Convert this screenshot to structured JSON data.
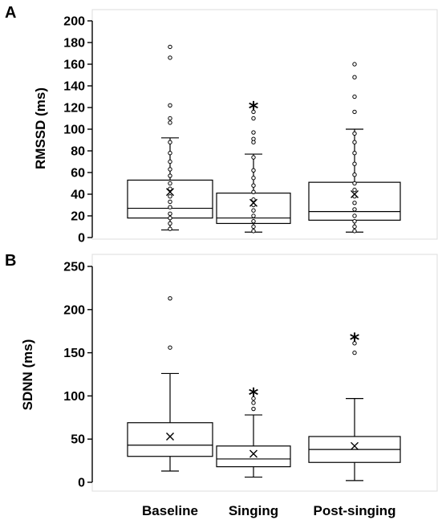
{
  "chart_data": [
    {
      "panel": "A",
      "type": "box",
      "ylabel": "RMSSD (ms)",
      "ylim": [
        0,
        200
      ],
      "yticks": [
        0,
        20,
        40,
        60,
        80,
        100,
        120,
        140,
        160,
        180,
        200
      ],
      "categories": [
        "Baseline",
        "Singing",
        "Post-singing"
      ],
      "grid": false,
      "boxes": [
        {
          "category": "Baseline",
          "whisker_low": 7,
          "q1": 18,
          "median": 27,
          "q3": 53,
          "whisker_high": 92,
          "mean": 42,
          "points": [
            166,
            176,
            122,
            110,
            106,
            88,
            78,
            70,
            63,
            57,
            50,
            45,
            38,
            33,
            28,
            22,
            18,
            13,
            8
          ],
          "significant": false
        },
        {
          "category": "Singing",
          "whisker_low": 5,
          "q1": 13,
          "median": 18,
          "q3": 41,
          "whisker_high": 77,
          "mean": 32,
          "points": [
            116,
            110,
            97,
            91,
            88,
            74,
            62,
            55,
            48,
            42,
            35,
            30,
            25,
            20,
            15,
            10,
            6
          ],
          "significant": true
        },
        {
          "category": "Post-singing",
          "whisker_low": 5,
          "q1": 16,
          "median": 24,
          "q3": 51,
          "whisker_high": 100,
          "mean": 40,
          "points": [
            160,
            148,
            130,
            116,
            96,
            88,
            78,
            68,
            58,
            50,
            44,
            38,
            32,
            26,
            20,
            15,
            10,
            6
          ],
          "significant": false
        }
      ]
    },
    {
      "panel": "B",
      "type": "box",
      "ylabel": "SDNN (ms)",
      "ylim": [
        0,
        250
      ],
      "yticks": [
        0,
        50,
        100,
        150,
        200,
        250
      ],
      "categories": [
        "Baseline",
        "Singing",
        "Post-singing"
      ],
      "grid": false,
      "boxes": [
        {
          "category": "Baseline",
          "whisker_low": 13,
          "q1": 30,
          "median": 43,
          "q3": 69,
          "whisker_high": 126,
          "mean": 53,
          "points": [
            213,
            156
          ],
          "significant": false
        },
        {
          "category": "Singing",
          "whisker_low": 6,
          "q1": 18,
          "median": 27,
          "q3": 42,
          "whisker_high": 78,
          "mean": 33,
          "points": [
            97,
            92,
            85
          ],
          "significant": true
        },
        {
          "category": "Post-singing",
          "whisker_low": 2,
          "q1": 23,
          "median": 38,
          "q3": 53,
          "whisker_high": 97,
          "mean": 42,
          "points": [
            161,
            150
          ],
          "significant": true
        }
      ]
    }
  ],
  "star_symbol": "*"
}
